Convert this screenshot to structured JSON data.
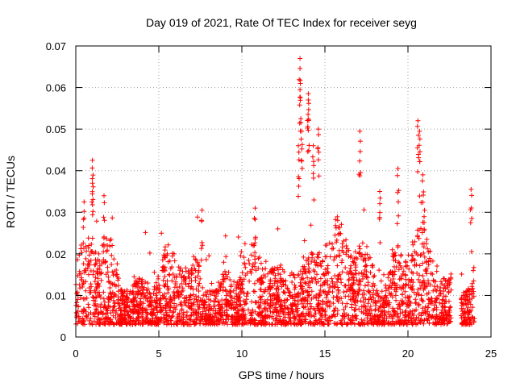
{
  "chart_data": {
    "type": "scatter",
    "title": "Day 019 of 2021, Rate Of TEC Index for receiver seyg",
    "xlabel": "GPS time / hours",
    "ylabel": "ROTI / TECUs",
    "xlim": [
      0,
      25
    ],
    "ylim": [
      0,
      0.07
    ],
    "x_ticks": [
      "0",
      "5",
      "10",
      "15",
      "20",
      "25"
    ],
    "y_ticks": [
      "0",
      "0.01",
      "0.02",
      "0.03",
      "0.04",
      "0.05",
      "0.06",
      "0.07"
    ],
    "grid": true,
    "marker": "plus",
    "color": "#ff0000",
    "data_coverage_hours": [
      0,
      24
    ],
    "peak_points": [
      {
        "x": 13.5,
        "y": 0.067
      },
      {
        "x": 13.5,
        "y": 0.0595
      },
      {
        "x": 14.0,
        "y": 0.0585
      },
      {
        "x": 14.0,
        "y": 0.057
      },
      {
        "x": 14.6,
        "y": 0.05
      },
      {
        "x": 17.1,
        "y": 0.0495
      },
      {
        "x": 20.6,
        "y": 0.052
      },
      {
        "x": 20.7,
        "y": 0.0495
      },
      {
        "x": 19.4,
        "y": 0.0405
      },
      {
        "x": 1.0,
        "y": 0.0425
      },
      {
        "x": 1.0,
        "y": 0.037
      },
      {
        "x": 1.7,
        "y": 0.034
      },
      {
        "x": 23.8,
        "y": 0.0355
      },
      {
        "x": 10.8,
        "y": 0.031
      },
      {
        "x": 7.6,
        "y": 0.0305
      },
      {
        "x": 0.5,
        "y": 0.0325
      },
      {
        "x": 13.4,
        "y": 0.046
      },
      {
        "x": 13.6,
        "y": 0.0495
      },
      {
        "x": 14.3,
        "y": 0.046
      },
      {
        "x": 20.9,
        "y": 0.039
      },
      {
        "x": 18.3,
        "y": 0.035
      },
      {
        "x": 21.0,
        "y": 0.0305
      }
    ]
  }
}
